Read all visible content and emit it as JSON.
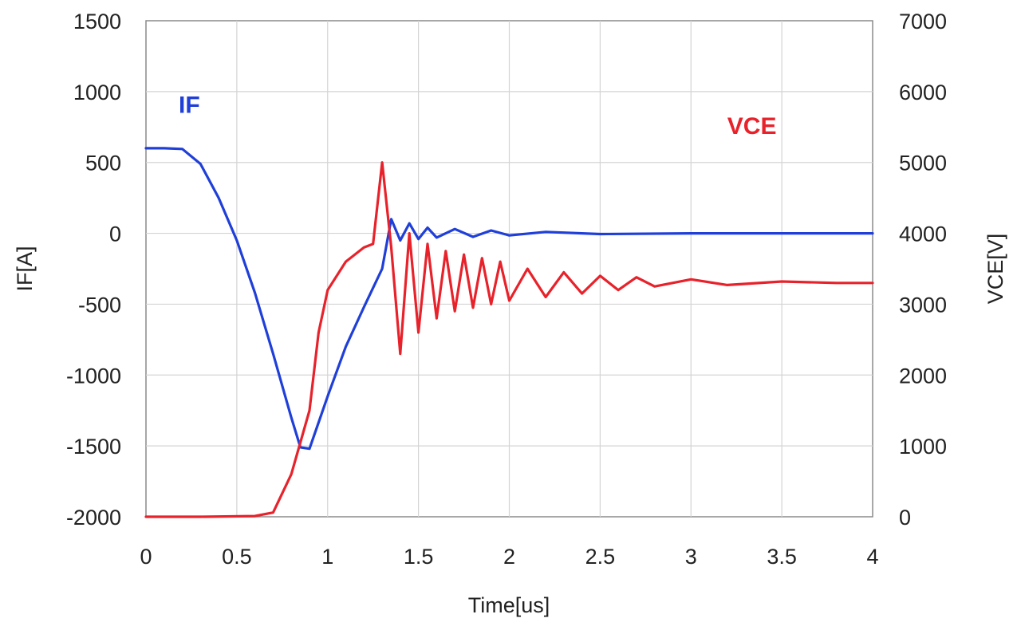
{
  "chart_data": {
    "type": "line",
    "title": "",
    "xlabel": "Time[us]",
    "ylabel_left": "IF[A]",
    "ylabel_right": "VCE[V]",
    "xlim": [
      0,
      4
    ],
    "ylim_left": [
      -2000,
      1500
    ],
    "ylim_right": [
      0,
      7000
    ],
    "x_ticks": [
      0,
      0.5,
      1,
      1.5,
      2,
      2.5,
      3,
      3.5,
      4
    ],
    "x_tick_labels": [
      "0",
      "0.5",
      "1",
      "1.5",
      "2",
      "2.5",
      "3",
      "3.5",
      "4"
    ],
    "y_left_ticks": [
      1500,
      1000,
      500,
      0,
      -500,
      -1000,
      -1500,
      -2000
    ],
    "y_left_tick_labels": [
      "1500",
      "1000",
      "500",
      "0",
      "-500",
      "-1000",
      "-1500",
      "-2000"
    ],
    "y_right_ticks": [
      7000,
      6000,
      5000,
      4000,
      3000,
      2000,
      1000,
      0
    ],
    "y_right_tick_labels": [
      "7000",
      "6000",
      "5000",
      "4000",
      "3000",
      "2000",
      "1000",
      "0"
    ],
    "grid": true,
    "series": [
      {
        "name": "IF",
        "axis": "left",
        "color": "#1f3fd8",
        "label_anchor": {
          "x": 0.18,
          "y": 850
        },
        "points": [
          [
            0,
            600
          ],
          [
            0.1,
            600
          ],
          [
            0.2,
            595
          ],
          [
            0.3,
            490
          ],
          [
            0.4,
            250
          ],
          [
            0.5,
            -50
          ],
          [
            0.6,
            -420
          ],
          [
            0.7,
            -850
          ],
          [
            0.8,
            -1300
          ],
          [
            0.85,
            -1510
          ],
          [
            0.9,
            -1520
          ],
          [
            1.0,
            -1150
          ],
          [
            1.1,
            -800
          ],
          [
            1.2,
            -520
          ],
          [
            1.3,
            -250
          ],
          [
            1.35,
            100
          ],
          [
            1.4,
            -50
          ],
          [
            1.45,
            70
          ],
          [
            1.5,
            -40
          ],
          [
            1.55,
            40
          ],
          [
            1.6,
            -30
          ],
          [
            1.7,
            30
          ],
          [
            1.8,
            -25
          ],
          [
            1.9,
            20
          ],
          [
            2.0,
            -15
          ],
          [
            2.2,
            10
          ],
          [
            2.5,
            -5
          ],
          [
            3.0,
            0
          ],
          [
            3.5,
            0
          ],
          [
            4.0,
            0
          ]
        ]
      },
      {
        "name": "VCE",
        "axis": "right",
        "color": "#e8222b",
        "label_anchor": {
          "x": 3.2,
          "y": 5400
        },
        "points": [
          [
            0,
            0
          ],
          [
            0.3,
            0
          ],
          [
            0.6,
            10
          ],
          [
            0.7,
            60
          ],
          [
            0.8,
            600
          ],
          [
            0.9,
            1500
          ],
          [
            0.95,
            2600
          ],
          [
            1.0,
            3200
          ],
          [
            1.1,
            3600
          ],
          [
            1.2,
            3800
          ],
          [
            1.25,
            3850
          ],
          [
            1.3,
            5000
          ],
          [
            1.35,
            3800
          ],
          [
            1.4,
            2300
          ],
          [
            1.45,
            4000
          ],
          [
            1.5,
            2600
          ],
          [
            1.55,
            3850
          ],
          [
            1.6,
            2800
          ],
          [
            1.65,
            3750
          ],
          [
            1.7,
            2900
          ],
          [
            1.75,
            3700
          ],
          [
            1.8,
            2950
          ],
          [
            1.85,
            3650
          ],
          [
            1.9,
            3000
          ],
          [
            1.95,
            3600
          ],
          [
            2.0,
            3050
          ],
          [
            2.1,
            3500
          ],
          [
            2.2,
            3100
          ],
          [
            2.3,
            3450
          ],
          [
            2.4,
            3150
          ],
          [
            2.5,
            3400
          ],
          [
            2.6,
            3200
          ],
          [
            2.7,
            3380
          ],
          [
            2.8,
            3250
          ],
          [
            3.0,
            3350
          ],
          [
            3.2,
            3270
          ],
          [
            3.5,
            3320
          ],
          [
            3.8,
            3300
          ],
          [
            4.0,
            3300
          ]
        ]
      }
    ]
  }
}
